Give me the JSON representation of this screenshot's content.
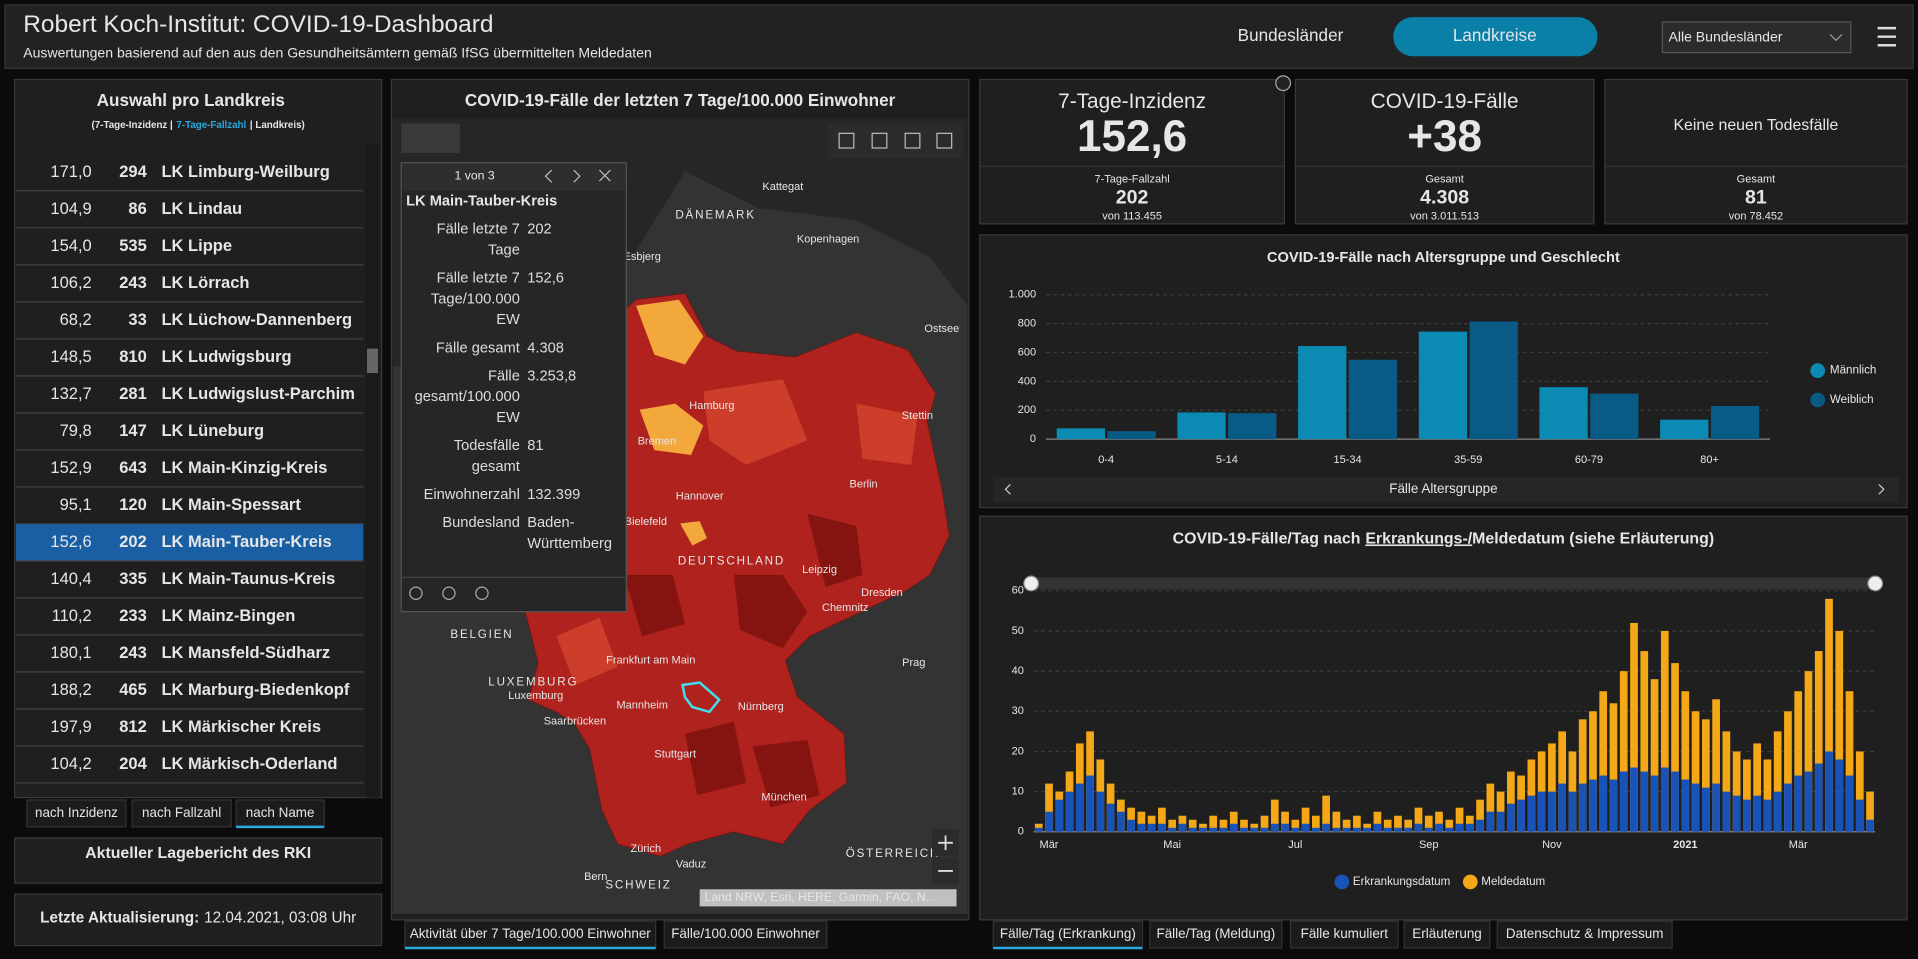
{
  "header": {
    "title": "Robert Koch-Institut: COVID-19-Dashboard",
    "subtitle": "Auswertungen basierend auf den aus den Gesundheitsämtern gemäß IfSG übermittelten Meldedaten",
    "tabs": [
      "Bundesländer",
      "Landkreise"
    ],
    "dropdown": "Alle Bundesländer"
  },
  "list": {
    "title": "Auswahl pro Landkreis",
    "legend": [
      "(7-Tage-Inzidenz |",
      "7-Tage-Fallzahl",
      "| Landkreis)"
    ],
    "rows": [
      [
        "171,0",
        "294",
        "LK Limburg-Weilburg"
      ],
      [
        "104,9",
        "86",
        "LK Lindau"
      ],
      [
        "154,0",
        "535",
        "LK Lippe"
      ],
      [
        "106,2",
        "243",
        "LK Lörrach"
      ],
      [
        "68,2",
        "33",
        "LK Lüchow-Dannenberg"
      ],
      [
        "148,5",
        "810",
        "LK Ludwigsburg"
      ],
      [
        "132,7",
        "281",
        "LK Ludwigslust-Parchim"
      ],
      [
        "79,8",
        "147",
        "LK Lüneburg"
      ],
      [
        "152,9",
        "643",
        "LK Main-Kinzig-Kreis"
      ],
      [
        "95,1",
        "120",
        "LK Main-Spessart"
      ],
      [
        "152,6",
        "202",
        "LK Main-Tauber-Kreis"
      ],
      [
        "140,4",
        "335",
        "LK Main-Taunus-Kreis"
      ],
      [
        "110,2",
        "233",
        "LK Mainz-Bingen"
      ],
      [
        "180,1",
        "243",
        "LK Mansfeld-Südharz"
      ],
      [
        "188,2",
        "465",
        "LK Marburg-Biedenkopf"
      ],
      [
        "197,9",
        "812",
        "LK Märkischer Kreis"
      ],
      [
        "104,2",
        "204",
        "LK Märkisch-Oderland"
      ]
    ],
    "sort_buttons": [
      "nach Inzidenz",
      "nach Fallzahl",
      "nach Name"
    ],
    "report": "Aktueller Lagebericht des RKI",
    "update_label": "Letzte Aktualisierung:",
    "update_value": "12.04.2021, 03:08 Uhr"
  },
  "map": {
    "title": "COVID-19-Fälle der letzten 7 Tage/100.000 Einwohner",
    "labels": [
      "Kattegat",
      "DÄNEMARK",
      "Esbjerg",
      "Kopenhagen",
      "Ostsee",
      "Hamburg",
      "Stettin",
      "Bremen",
      "Hannover",
      "Berlin",
      "Bielefeld",
      "DEUTSCHLAND",
      "Leipzig",
      "Dresden",
      "Chemnitz",
      "BELGIEN",
      "Frankfurt am Main",
      "Prag",
      "LUXEMBURG",
      "Luxemburg",
      "Mannheim",
      "Nürnberg",
      "Saarbrücken",
      "Stuttgart",
      "München",
      "Zürich",
      "Vaduz",
      "Bern",
      "SCHWEIZ",
      "ÖSTERREICH"
    ],
    "popup": {
      "pager": "1 von 3",
      "title": "LK Main-Tauber-Kreis",
      "fields": [
        [
          "Fälle letzte 7 Tage",
          "202"
        ],
        [
          "Fälle letzte 7 Tage/100.000 EW",
          "152,6"
        ],
        [
          "Fälle gesamt",
          "4.308"
        ],
        [
          "Fälle gesamt/100.000 EW",
          "3.253,8"
        ],
        [
          "Todesfälle gesamt",
          "81"
        ],
        [
          "Einwohnerzahl",
          "132.399"
        ],
        [
          "Bundesland",
          "Baden-Württemberg"
        ]
      ]
    },
    "attribution": "Land NRW, Esri, HERE, Garmin, FAO, N...",
    "tabs": [
      "Aktivität über 7 Tage/100.000 Einwohner",
      "Fälle/100.000 Einwohner"
    ]
  },
  "kpis": [
    {
      "title": "7-Tage-Inzidenz",
      "value": "152,6",
      "sub_label": "7-Tage-Fallzahl",
      "sub_value": "202",
      "sub_total": "von 113.455"
    },
    {
      "title": "COVID-19-Fälle",
      "value": "+38",
      "sub_label": "Gesamt",
      "sub_value": "4.308",
      "sub_total": "von 3.011.513"
    },
    {
      "title": "Keine neuen Todesfälle",
      "sub_label": "Gesamt",
      "sub_value": "81",
      "sub_total": "von 78.452"
    }
  ],
  "chart_data": [
    {
      "type": "bar",
      "barmode": "group",
      "title": "COVID-19-Fälle nach Altersgruppe und Geschlecht",
      "categories": [
        "0-4",
        "5-14",
        "15-34",
        "35-59",
        "60-79",
        "80+"
      ],
      "series": [
        {
          "name": "Männlich",
          "color": "#0b8bb3",
          "values": [
            75,
            185,
            645,
            745,
            360,
            135
          ]
        },
        {
          "name": "Weiblich",
          "color": "#0a5a86",
          "values": [
            55,
            180,
            550,
            815,
            315,
            230
          ]
        }
      ],
      "ylim": [
        0,
        1000
      ],
      "yticks": [
        0,
        200,
        400,
        600,
        800,
        {
          "value": 1000,
          "label": "1.000"
        }
      ],
      "grid": true,
      "xlabel": "Fälle Altersgruppe",
      "legend": "right"
    },
    {
      "type": "bar",
      "barmode": "overlay",
      "title": [
        "COVID-19-Fälle/Tag nach",
        "Erkrankungs-/",
        "Meldedatum (siehe Erläuterung)"
      ],
      "categories": [
        null,
        "Mär",
        null,
        null,
        null,
        null,
        null,
        null,
        null,
        null,
        null,
        null,
        null,
        "Mai",
        null,
        null,
        null,
        null,
        null,
        null,
        null,
        null,
        null,
        null,
        null,
        "Jul",
        null,
        null,
        null,
        null,
        null,
        null,
        null,
        null,
        null,
        null,
        null,
        null,
        "Sep",
        null,
        null,
        null,
        null,
        null,
        null,
        null,
        null,
        null,
        null,
        null,
        "Nov",
        null,
        null,
        null,
        null,
        null,
        null,
        null,
        null,
        null,
        null,
        null,
        null,
        "2021",
        null,
        null,
        null,
        null,
        null,
        null,
        null,
        null,
        null,
        null,
        "Mär",
        null,
        null,
        null,
        null,
        null,
        null,
        null
      ],
      "series": [
        {
          "name": "Erkrankungsdatum",
          "color": "#1a53b8",
          "values": [
            1,
            5,
            8,
            10,
            12,
            14,
            10,
            7,
            5,
            3,
            2,
            2,
            2,
            1,
            2,
            1,
            1,
            1,
            1,
            2,
            1,
            1,
            1,
            2,
            2,
            1,
            2,
            1,
            2,
            1,
            1,
            1,
            1,
            2,
            1,
            1,
            1,
            2,
            1,
            2,
            1,
            2,
            2,
            3,
            5,
            5,
            7,
            8,
            9,
            10,
            10,
            12,
            10,
            12,
            13,
            14,
            13,
            15,
            16,
            15,
            14,
            16,
            15,
            13,
            12,
            11,
            12,
            10,
            9,
            8,
            9,
            8,
            10,
            12,
            14,
            15,
            17,
            20,
            18,
            14,
            8,
            3
          ]
        },
        {
          "name": "Meldedatum",
          "color": "#f5a817",
          "values": [
            2,
            12,
            10,
            15,
            22,
            25,
            18,
            12,
            8,
            6,
            5,
            4,
            6,
            3,
            4,
            3,
            2,
            4,
            3,
            5,
            3,
            2,
            4,
            8,
            5,
            3,
            6,
            4,
            9,
            5,
            3,
            4,
            2,
            5,
            3,
            4,
            3,
            6,
            4,
            5,
            3,
            6,
            4,
            8,
            12,
            10,
            15,
            14,
            18,
            20,
            22,
            25,
            20,
            28,
            30,
            35,
            32,
            40,
            52,
            45,
            38,
            50,
            42,
            35,
            30,
            28,
            33,
            25,
            20,
            18,
            22,
            18,
            25,
            30,
            35,
            40,
            45,
            58,
            50,
            35,
            20,
            10
          ]
        }
      ],
      "ylim": [
        0,
        60
      ],
      "yticks": [
        0,
        10,
        20,
        30,
        40,
        50,
        60
      ],
      "grid": true,
      "legend": "bottom"
    }
  ],
  "bottom_tabs": [
    "Fälle/Tag (Erkrankung)",
    "Fälle/Tag (Meldung)",
    "Fälle kumuliert",
    "Erläuterung",
    "Datenschutz & Impressum"
  ]
}
